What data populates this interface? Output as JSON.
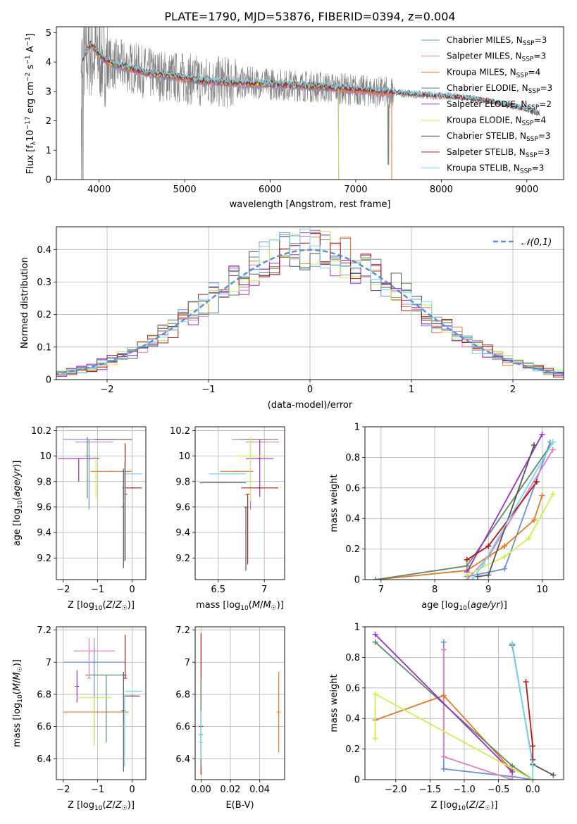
{
  "figure_title": "PLATE=1790, MJD=53876, FIBERID=0394, z=0.004",
  "colors": {
    "Chabrier MILES": "#6f8fdc",
    "Salpeter MILES": "#e07fbf",
    "Kroupa MILES": "#e07a28",
    "Chabrier ELODIE": "#5e8a66",
    "Salpeter ELODIE": "#9b30c4",
    "Kroupa ELODIE": "#d2ec55",
    "Chabrier STELIB": "#555555",
    "Salpeter STELIB": "#b01818",
    "Kroupa STELIB": "#76d8e8",
    "data": "#808080",
    "normal": "#5b8fd6"
  },
  "chart_data": [
    {
      "id": "spectrum",
      "type": "line",
      "title": "PLATE=1790, MJD=53876, FIBERID=0394, z=0.004",
      "xlabel": "wavelength [Angstrom, rest frame]",
      "ylabel": "Flux [f_λ 10^-17 erg cm^-2 s^-1 A^-1]",
      "xlim": [
        3500,
        9430
      ],
      "ylim": [
        0,
        5.2
      ],
      "xticks": [
        4000,
        5000,
        6000,
        7000,
        8000,
        9000
      ],
      "yticks": [
        0,
        1,
        2,
        3,
        4,
        5
      ],
      "data_wavelength": [
        3800,
        3900,
        4000,
        4100,
        4200,
        4400,
        4600,
        4800,
        5000,
        5200,
        5500,
        5800,
        6000,
        6300,
        6600,
        7000,
        7400,
        7800,
        8200,
        8600,
        9000,
        9150
      ],
      "data_flux": [
        4.0,
        4.3,
        4.2,
        4.0,
        3.9,
        3.8,
        3.6,
        3.5,
        3.45,
        3.35,
        3.3,
        3.3,
        3.25,
        3.2,
        3.15,
        3.05,
        2.95,
        2.85,
        2.8,
        2.65,
        2.4,
        2.25
      ],
      "model_wavelength": [
        3780,
        3800,
        3850,
        3900,
        3950,
        4000,
        4100,
        4200,
        4400,
        4600,
        4800,
        5000,
        5200,
        5500,
        5800,
        6000,
        6300,
        6600,
        7000,
        7400,
        7800,
        8200,
        8600,
        9000,
        9150
      ],
      "model_flux": [
        3.4,
        4.0,
        4.35,
        4.6,
        4.45,
        4.25,
        4.0,
        3.9,
        3.75,
        3.6,
        3.55,
        3.45,
        3.35,
        3.3,
        3.25,
        3.25,
        3.2,
        3.15,
        3.05,
        2.95,
        2.85,
        2.78,
        2.6,
        2.35,
        2.2
      ],
      "series": [
        {
          "name": "Chabrier MILES, N_SSP=3",
          "label_main": "Chabrier MILES, N",
          "label_sub": "SSP",
          "label_end": "=3",
          "end_wavelength": 7420
        },
        {
          "name": "Salpeter MILES, N_SSP=3",
          "label_main": "Salpeter MILES, N",
          "label_sub": "SSP",
          "label_end": "=3",
          "end_wavelength": 7420
        },
        {
          "name": "Kroupa MILES, N_SSP=4",
          "label_main": "Kroupa MILES, N",
          "label_sub": "SSP",
          "label_end": "=4",
          "end_wavelength": 7420
        },
        {
          "name": "Chabrier ELODIE, N_SSP=3",
          "label_main": "Chabrier ELODIE, N",
          "label_sub": "SSP",
          "label_end": "=3",
          "end_wavelength": 6800
        },
        {
          "name": "Salpeter ELODIE, N_SSP=2",
          "label_main": "Salpeter ELODIE, N",
          "label_sub": "SSP",
          "label_end": "=2",
          "end_wavelength": 6800
        },
        {
          "name": "Kroupa ELODIE, N_SSP=4",
          "label_main": "Kroupa ELODIE, N",
          "label_sub": "SSP",
          "label_end": "=4",
          "end_wavelength": 6800
        },
        {
          "name": "Chabrier STELIB, N_SSP=3",
          "label_main": "Chabrier STELIB, N",
          "label_sub": "SSP",
          "label_end": "=3",
          "end_wavelength": 9150
        },
        {
          "name": "Salpeter STELIB, N_SSP=3",
          "label_main": "Salpeter STELIB, N",
          "label_sub": "SSP",
          "label_end": "=3",
          "end_wavelength": 9150
        },
        {
          "name": "Kroupa STELIB, N_SSP=3",
          "label_main": "Kroupa STELIB, N",
          "label_sub": "SSP",
          "label_end": "=3",
          "end_wavelength": 9150
        }
      ],
      "legend_placement": "top-right",
      "grid": false
    },
    {
      "id": "residuals",
      "type": "bar",
      "xlabel": "(data-model)/error",
      "ylabel": "Normed distribution",
      "xlim": [
        -2.5,
        2.5
      ],
      "ylim": [
        0,
        0.47
      ],
      "xticks": [
        -2,
        -1,
        0,
        1,
        2
      ],
      "yticks": [
        0.0,
        0.1,
        0.2,
        0.3,
        0.4
      ],
      "grid": true,
      "legend": "𝒩(0,1)",
      "legend_placement": "top-right",
      "bin_width": 0.1,
      "bin_start": -2.5,
      "curve": "standard normal density"
    },
    {
      "id": "age-vs-Z",
      "type": "scatter",
      "xlabel": "Z [log10(Z/Z☉)]",
      "ylabel": "age  [log10(age/yr)]",
      "xlim": [
        -2.2,
        0.4
      ],
      "ylim": [
        9.03,
        10.23
      ],
      "xticks": [
        -2,
        -1,
        0
      ],
      "yticks": [
        9.2,
        9.4,
        9.6,
        9.8,
        10.0,
        10.2
      ],
      "grid": true,
      "points": [
        {
          "x": -1.25,
          "y": 10.13,
          "xerr": 0.75,
          "yerr_lo": 0.55,
          "yerr_hi": 0.0,
          "series": "Chabrier MILES"
        },
        {
          "x": -1.1,
          "y": 10.11,
          "xerr": 0.55,
          "yerr_lo": 0.0,
          "yerr_hi": 0.0,
          "series": "Salpeter MILES"
        },
        {
          "x": -0.6,
          "y": 9.88,
          "xerr": 0.6,
          "yerr_lo": 0.0,
          "yerr_hi": 0.0,
          "series": "Kroupa MILES"
        },
        {
          "x": -1.3,
          "y": 10.0,
          "xerr": 0.0,
          "yerr_lo": 0.33,
          "yerr_hi": 0.15,
          "series": "Chabrier ELODIE"
        },
        {
          "x": -1.55,
          "y": 9.98,
          "xerr": 0.6,
          "yerr_lo": 0.18,
          "yerr_hi": 0.0,
          "series": "Salpeter ELODIE"
        },
        {
          "x": -1.05,
          "y": 9.99,
          "xerr": 0.0,
          "yerr_lo": 0.32,
          "yerr_hi": 0.0,
          "series": "Kroupa ELODIE"
        },
        {
          "x": -0.55,
          "y": 10.13,
          "xerr": 0.55,
          "yerr_lo": 0.0,
          "yerr_hi": 0.0,
          "series": "Chabrier STELIB"
        },
        {
          "x": 0.0,
          "y": 9.75,
          "xerr": 0.28,
          "yerr_lo": 0.0,
          "yerr_hi": 0.0,
          "series": "Salpeter STELIB"
        },
        {
          "x": 0.05,
          "y": 9.86,
          "xerr": 0.25,
          "yerr_lo": 0.0,
          "yerr_hi": 0.0,
          "series": "Kroupa STELIB"
        },
        {
          "x": -0.2,
          "y": 9.7,
          "xerr": 0.0,
          "yerr_lo": 0.52,
          "yerr_hi": 0.4,
          "series": "Salpeter STELIB"
        },
        {
          "x": -0.25,
          "y": 9.6,
          "xerr": 0.0,
          "yerr_lo": 0.48,
          "yerr_hi": 0.3,
          "series": "Chabrier STELIB"
        },
        {
          "x": -0.22,
          "y": 9.65,
          "xerr": 0.0,
          "yerr_lo": 0.48,
          "yerr_hi": 0.3,
          "series": "Kroupa STELIB"
        }
      ]
    },
    {
      "id": "age-vs-mass",
      "type": "scatter",
      "xlabel": "mass [log10(M/M☉)]",
      "xlim": [
        6.25,
        7.22
      ],
      "ylim": [
        9.03,
        10.23
      ],
      "xticks": [
        6.5,
        7.0
      ],
      "yticks": [
        9.2,
        9.4,
        9.6,
        9.8,
        10.0,
        10.2
      ],
      "grid": true,
      "points": [
        {
          "x": 6.85,
          "y": 10.13,
          "xerr": 0.2,
          "yerr_lo": 0.55,
          "yerr_hi": 0.0,
          "series": "Chabrier MILES"
        },
        {
          "x": 6.98,
          "y": 10.11,
          "xerr": 0.18,
          "yerr_lo": 0.0,
          "yerr_hi": 0.0,
          "series": "Salpeter MILES"
        },
        {
          "x": 6.7,
          "y": 9.88,
          "xerr": 0.18,
          "yerr_lo": 0.0,
          "yerr_hi": 0.0,
          "series": "Kroupa MILES"
        },
        {
          "x": 6.95,
          "y": 10.13,
          "xerr": 0.2,
          "yerr_lo": 0.0,
          "yerr_hi": 0.0,
          "series": "Chabrier ELODIE"
        },
        {
          "x": 6.95,
          "y": 9.98,
          "xerr": 0.15,
          "yerr_lo": 0.3,
          "yerr_hi": 0.15,
          "series": "Salpeter ELODIE"
        },
        {
          "x": 6.85,
          "y": 10.0,
          "xerr": 0.15,
          "yerr_lo": 0.35,
          "yerr_hi": 0.15,
          "series": "Kroupa ELODIE"
        },
        {
          "x": 6.55,
          "y": 9.79,
          "xerr": 0.25,
          "yerr_lo": 0.0,
          "yerr_hi": 0.0,
          "series": "Chabrier STELIB"
        },
        {
          "x": 6.95,
          "y": 9.75,
          "xerr": 0.2,
          "yerr_lo": 0.0,
          "yerr_hi": 0.0,
          "series": "Salpeter STELIB"
        },
        {
          "x": 6.6,
          "y": 9.86,
          "xerr": 0.2,
          "yerr_lo": 0.0,
          "yerr_hi": 0.0,
          "series": "Kroupa STELIB"
        },
        {
          "x": 6.82,
          "y": 9.7,
          "xerr": 0.0,
          "yerr_lo": 0.55,
          "yerr_hi": 0.0,
          "series": "Salpeter STELIB"
        },
        {
          "x": 6.8,
          "y": 9.6,
          "xerr": 0.0,
          "yerr_lo": 0.5,
          "yerr_hi": 0.0,
          "series": "Chabrier STELIB"
        }
      ]
    },
    {
      "id": "weight-vs-age",
      "type": "line",
      "xlabel": "age  [log10(age/yr)]",
      "ylabel": "mass weight",
      "xlim": [
        6.7,
        10.4
      ],
      "ylim": [
        0,
        1.0
      ],
      "xticks": [
        7,
        8,
        9,
        10
      ],
      "yticks": [
        0.0,
        0.2,
        0.4,
        0.6,
        0.8,
        1.0
      ],
      "grid": true,
      "series": [
        {
          "series": "Chabrier MILES",
          "x": [
            8.6,
            9.3,
            10.15
          ],
          "y": [
            0.02,
            0.07,
            0.9
          ]
        },
        {
          "series": "Salpeter MILES",
          "x": [
            8.6,
            9.0,
            10.2
          ],
          "y": [
            0.0,
            0.15,
            0.85
          ]
        },
        {
          "series": "Kroupa MILES",
          "x": [
            6.9,
            8.6,
            9.3,
            9.85,
            10.0
          ],
          "y": [
            0.0,
            0.06,
            0.22,
            0.39,
            0.55
          ]
        },
        {
          "series": "Chabrier ELODIE",
          "x": [
            6.9,
            8.6,
            10.2
          ],
          "y": [
            0.0,
            0.09,
            0.9
          ]
        },
        {
          "series": "Salpeter ELODIE",
          "x": [
            8.6,
            10.0
          ],
          "y": [
            0.05,
            0.95
          ]
        },
        {
          "series": "Kroupa ELODIE",
          "x": [
            8.6,
            9.3,
            9.75,
            10.2
          ],
          "y": [
            0.03,
            0.15,
            0.27,
            0.56
          ]
        },
        {
          "series": "Chabrier STELIB",
          "x": [
            8.8,
            9.0,
            9.85
          ],
          "y": [
            0.02,
            0.03,
            0.88
          ]
        },
        {
          "series": "Salpeter STELIB",
          "x": [
            8.6,
            9.0,
            9.9
          ],
          "y": [
            0.13,
            0.22,
            0.64
          ]
        },
        {
          "series": "Kroupa STELIB",
          "x": [
            8.7,
            8.9,
            10.2
          ],
          "y": [
            0.0,
            0.1,
            0.9
          ]
        }
      ]
    },
    {
      "id": "mass-vs-Z",
      "type": "scatter",
      "xlabel": "Z [log10(Z/Z☉)]",
      "ylabel": "mass [log10(M/M☉)]",
      "xlim": [
        -2.2,
        0.4
      ],
      "ylim": [
        6.27,
        7.22
      ],
      "xticks": [
        -2,
        -1,
        0
      ],
      "yticks": [
        6.4,
        6.6,
        6.8,
        7.0,
        7.2
      ],
      "grid": true,
      "points": [
        {
          "x": -1.1,
          "y": 7.0,
          "xerr": 0.9,
          "yerr_lo": 0.5,
          "yerr_hi": 0.1,
          "series": "Chabrier MILES"
        },
        {
          "x": -1.1,
          "y": 7.07,
          "xerr": 0.6,
          "yerr_lo": 0.0,
          "yerr_hi": 0.08,
          "series": "Salpeter MILES"
        },
        {
          "x": -1.05,
          "y": 6.69,
          "xerr": 0.95,
          "yerr_lo": 0.0,
          "yerr_hi": 0.0,
          "series": "Kroupa MILES"
        },
        {
          "x": -0.75,
          "y": 6.92,
          "xerr": 0.6,
          "yerr_lo": 0.42,
          "yerr_hi": 0.0,
          "series": "Chabrier ELODIE"
        },
        {
          "x": -1.6,
          "y": 6.85,
          "xerr": 0.0,
          "yerr_lo": 0.1,
          "yerr_hi": 0.1,
          "series": "Salpeter ELODIE"
        },
        {
          "x": -1.1,
          "y": 6.78,
          "xerr": 0.5,
          "yerr_lo": 0.3,
          "yerr_hi": 0.0,
          "series": "Kroupa ELODIE"
        },
        {
          "x": 0.0,
          "y": 6.79,
          "xerr": 0.22,
          "yerr_lo": 0.0,
          "yerr_hi": 0.0,
          "series": "Chabrier STELIB"
        },
        {
          "x": -0.2,
          "y": 6.9,
          "xerr": 0.0,
          "yerr_lo": 0.0,
          "yerr_hi": 0.27,
          "series": "Salpeter STELIB"
        },
        {
          "x": 0.05,
          "y": 6.82,
          "xerr": 0.25,
          "yerr_lo": 0.0,
          "yerr_hi": 0.0,
          "series": "Kroupa STELIB"
        },
        {
          "x": -0.25,
          "y": 6.7,
          "xerr": 0.0,
          "yerr_lo": 0.38,
          "yerr_hi": 0.24,
          "series": "Chabrier STELIB"
        },
        {
          "x": -0.22,
          "y": 6.6,
          "xerr": 0.0,
          "yerr_lo": 0.25,
          "yerr_hi": 0.2,
          "series": "Kroupa STELIB"
        },
        {
          "x": -1.25,
          "y": 6.9,
          "xerr": 0.0,
          "yerr_lo": 0.0,
          "yerr_hi": 0.25,
          "series": "Salpeter MILES"
        }
      ]
    },
    {
      "id": "mass-vs-ebv",
      "type": "scatter",
      "xlabel": "E(B-V)",
      "xlim": [
        -0.004,
        0.057
      ],
      "ylim": [
        6.27,
        7.22
      ],
      "xticks": [
        0.0,
        0.02,
        0.04
      ],
      "xticklabels": [
        "0.00",
        "0.02",
        "0.04"
      ],
      "yticks": [
        6.4,
        6.6,
        6.8,
        7.0,
        7.2
      ],
      "grid": true,
      "points": [
        {
          "x": 0.0,
          "y": 6.6,
          "xerr": 0.0,
          "yerr_lo": 0.3,
          "yerr_hi": 0.58,
          "series": "Salpeter STELIB"
        },
        {
          "x": 0.0,
          "y": 6.55,
          "xerr": 0.0,
          "yerr_lo": 0.2,
          "yerr_hi": 0.35,
          "series": "Chabrier ELODIE"
        },
        {
          "x": 0.0,
          "y": 6.5,
          "xerr": 0.0,
          "yerr_lo": 0.1,
          "yerr_hi": 0.2,
          "series": "Kroupa STELIB"
        },
        {
          "x": 0.053,
          "y": 6.69,
          "xerr": 0.0,
          "yerr_lo": 0.25,
          "yerr_hi": 0.25,
          "series": "Kroupa MILES"
        }
      ]
    },
    {
      "id": "weight-vs-Z",
      "type": "line",
      "xlabel": "Z [log10(Z/Z☉)]",
      "ylabel": "mass weight",
      "xlim": [
        -2.45,
        0.45
      ],
      "ylim": [
        0,
        1.0
      ],
      "xticks": [
        -2.0,
        -1.5,
        -1.0,
        -0.5,
        0.0
      ],
      "xticklabels": [
        "−2.0",
        "−1.5",
        "−1.0",
        "−0.5",
        "0.0"
      ],
      "yticks": [
        0.0,
        0.2,
        0.4,
        0.6,
        0.8,
        1.0
      ],
      "grid": true,
      "series": [
        {
          "series": "Chabrier MILES",
          "x": [
            -1.3,
            -1.3,
            -0.3,
            0.0
          ],
          "y": [
            0.9,
            0.07,
            0.02,
            0.0
          ]
        },
        {
          "series": "Salpeter MILES",
          "x": [
            -1.3,
            -1.3,
            -0.3
          ],
          "y": [
            0.85,
            0.15,
            0.0
          ]
        },
        {
          "series": "Kroupa MILES",
          "x": [
            -2.3,
            -1.3,
            -0.3
          ],
          "y": [
            0.39,
            0.55,
            0.06
          ]
        },
        {
          "series": "Chabrier ELODIE",
          "x": [
            -2.3,
            -0.3,
            0.0
          ],
          "y": [
            0.9,
            0.09,
            0.0
          ]
        },
        {
          "series": "Salpeter ELODIE",
          "x": [
            -2.3,
            -0.3
          ],
          "y": [
            0.95,
            0.05
          ]
        },
        {
          "series": "Kroupa ELODIE",
          "x": [
            -2.3,
            -2.3,
            0.0
          ],
          "y": [
            0.27,
            0.56,
            0.0
          ]
        },
        {
          "series": "Chabrier STELIB",
          "x": [
            -0.3,
            0.0,
            0.3
          ],
          "y": [
            0.88,
            0.1,
            0.03
          ]
        },
        {
          "series": "Salpeter STELIB",
          "x": [
            -0.1,
            0.0,
            0.0
          ],
          "y": [
            0.64,
            0.22,
            0.13
          ]
        },
        {
          "series": "Kroupa STELIB",
          "x": [
            -0.3,
            0.0,
            0.0
          ],
          "y": [
            0.89,
            0.09,
            0.0
          ]
        }
      ]
    }
  ]
}
